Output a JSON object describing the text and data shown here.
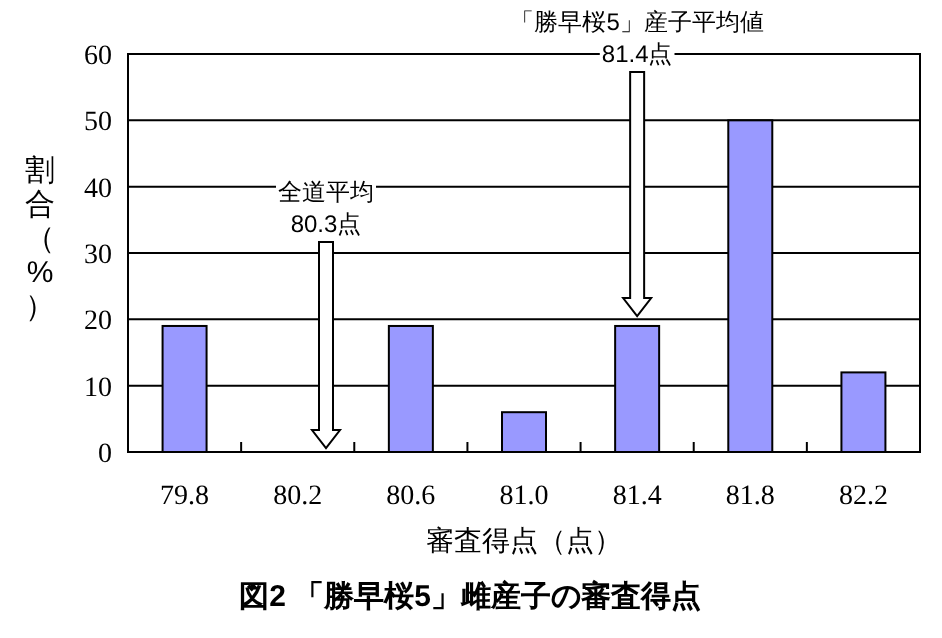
{
  "chart_data": {
    "type": "bar",
    "title": "図2 「勝早桜5」雌産子の審査得点",
    "xlabel": "審査得点（点）",
    "ylabel": "割合（%）",
    "categories": [
      "79.8",
      "80.2",
      "80.6",
      "81.0",
      "81.4",
      "81.8",
      "82.2"
    ],
    "values": [
      19,
      0,
      19,
      6,
      19,
      50,
      12
    ],
    "color": "#9999ff",
    "ylim": [
      0,
      60
    ],
    "yticks": [
      0,
      10,
      20,
      30,
      40,
      50,
      60
    ],
    "grid": "y",
    "annotations": [
      "全道平均 80.3点",
      "「勝早桜5」産子平均値 81.4点"
    ]
  }
}
